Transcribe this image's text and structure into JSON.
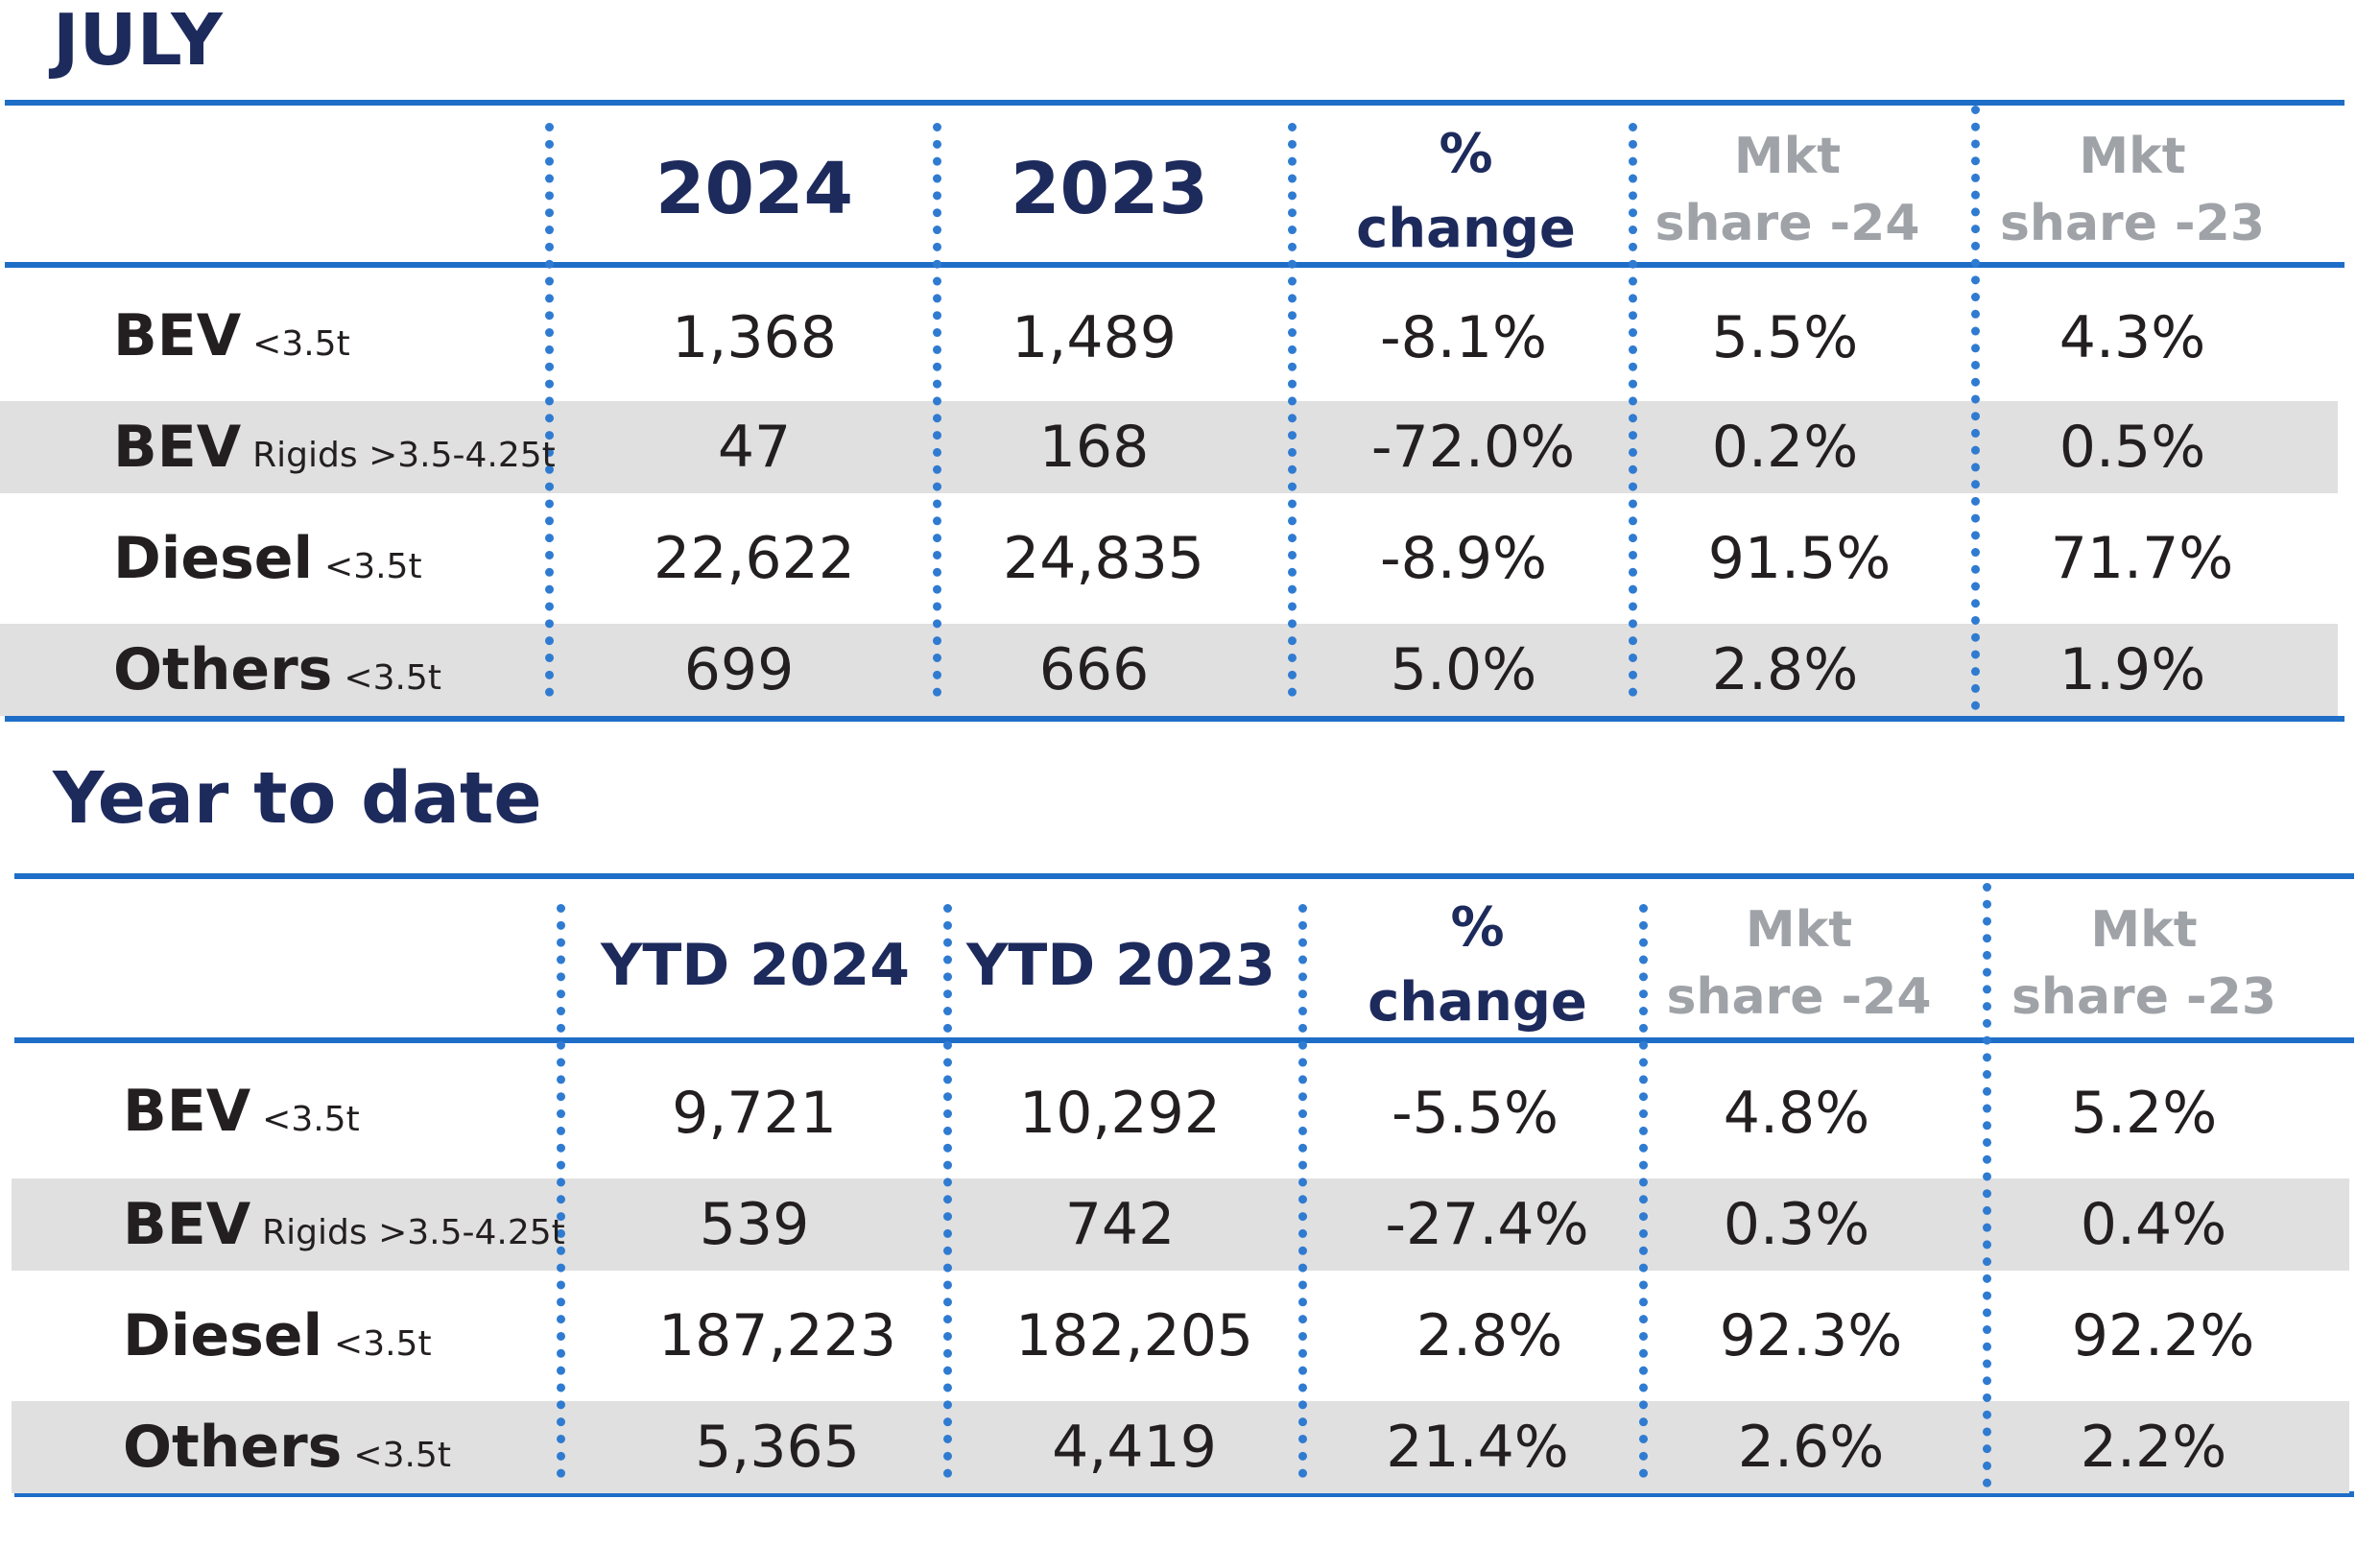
{
  "sections": [
    {
      "title": "JULY",
      "headers": {
        "col1": "2024",
        "col2": "2023",
        "change_line1": "%",
        "change_line2": "change",
        "share24_line1": "Mkt",
        "share24_line2": "share -24",
        "share23_line1": "Mkt",
        "share23_line2": "share -23"
      },
      "rows": [
        {
          "label": "BEV",
          "sub": "<3.5t",
          "v1": "1,368",
          "v2": "1,489",
          "change": "-8.1%",
          "share24": "5.5%",
          "share23": "4.3%"
        },
        {
          "label": "BEV",
          "sub": "Rigids >3.5-4.25t",
          "v1": "47",
          "v2": "168",
          "change": "-72.0%",
          "share24": "0.2%",
          "share23": "0.5%"
        },
        {
          "label": "Diesel",
          "sub": "<3.5t",
          "v1": "22,622",
          "v2": "24,835",
          "change": "-8.9%",
          "share24": "91.5%",
          "share23": "71.7%"
        },
        {
          "label": "Others",
          "sub": "<3.5t",
          "v1": "699",
          "v2": "666",
          "change": "5.0%",
          "share24": "2.8%",
          "share23": "1.9%"
        }
      ]
    },
    {
      "title": "Year to date",
      "headers": {
        "col1": "YTD 2024",
        "col2": "YTD 2023",
        "change_line1": "%",
        "change_line2": "change",
        "share24_line1": "Mkt",
        "share24_line2": "share -24",
        "share23_line1": "Mkt",
        "share23_line2": "share -23"
      },
      "rows": [
        {
          "label": "BEV",
          "sub": "<3.5t",
          "v1": "9,721",
          "v2": "10,292",
          "change": "-5.5%",
          "share24": "4.8%",
          "share23": "5.2%"
        },
        {
          "label": "BEV",
          "sub": "Rigids >3.5-4.25t",
          "v1": "539",
          "v2": "742",
          "change": "-27.4%",
          "share24": "0.3%",
          "share23": "0.4%"
        },
        {
          "label": "Diesel",
          "sub": "<3.5t",
          "v1": "187,223",
          "v2": "182,205",
          "change": "2.8%",
          "share24": "92.3%",
          "share23": "92.2%"
        },
        {
          "label": "Others",
          "sub": "<3.5t",
          "v1": "5,365",
          "v2": "4,419",
          "change": "21.4%",
          "share24": "2.6%",
          "share23": "2.2%"
        }
      ]
    }
  ],
  "colors": {
    "accent_blue": "#1e6ec8",
    "title_navy": "#1d2a5c",
    "band_gray": "#e0e0e0",
    "muted_gray": "#9fa3a8"
  }
}
